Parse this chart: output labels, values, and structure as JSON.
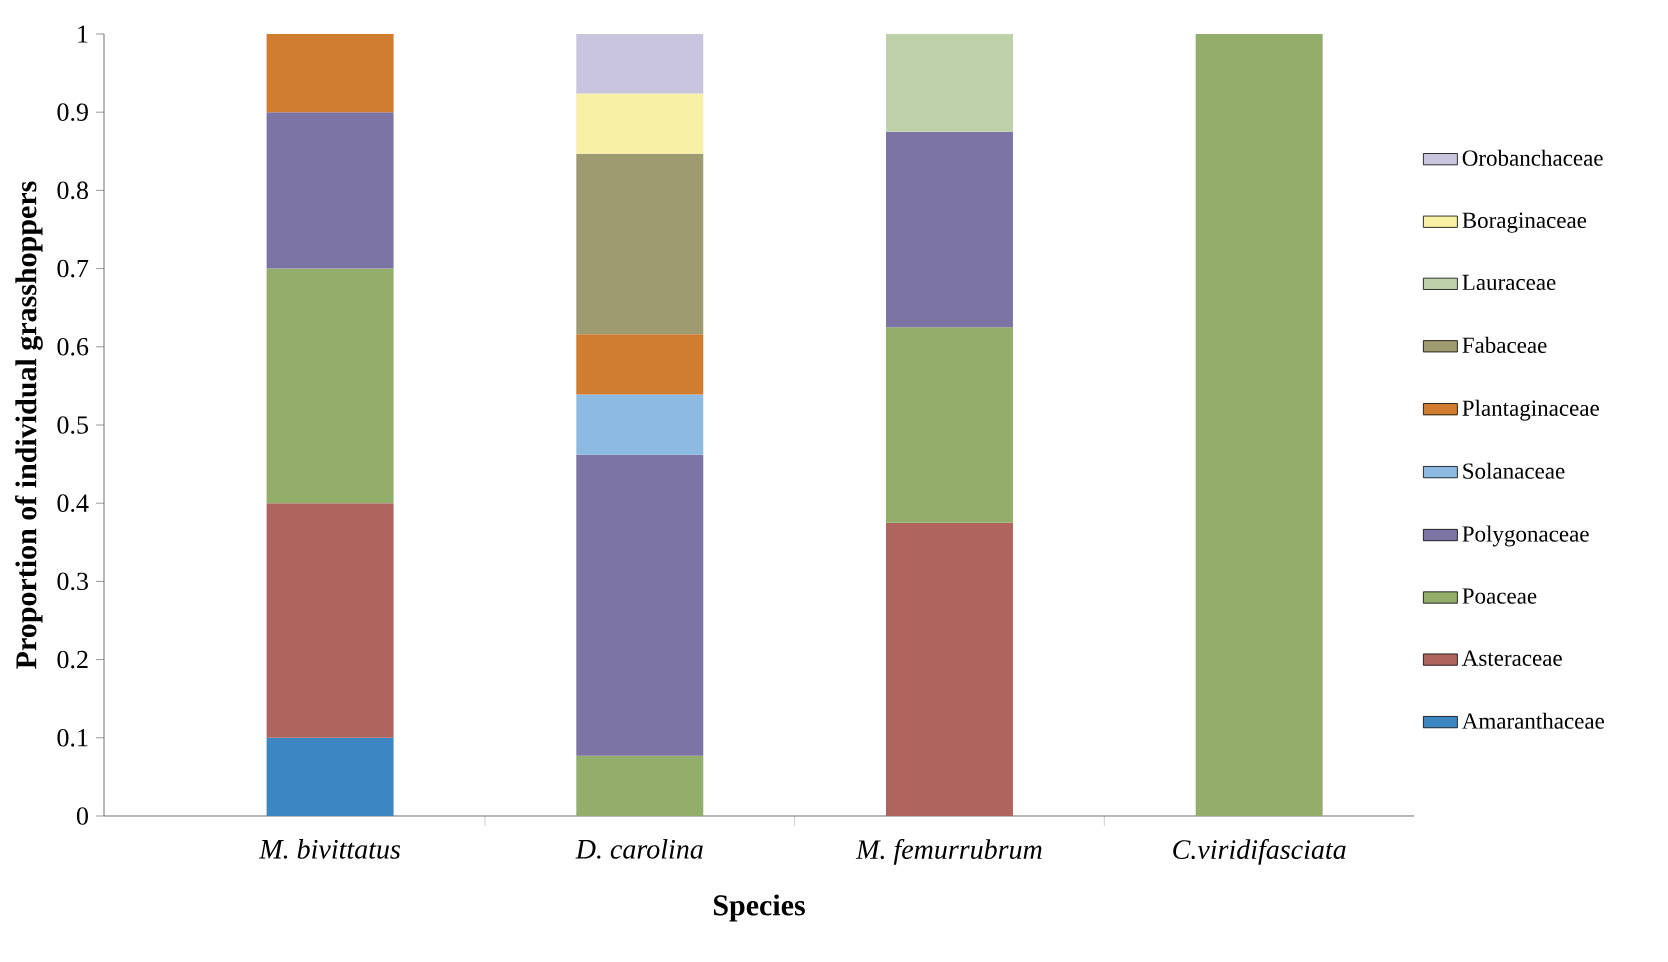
{
  "chart_data": {
    "type": "bar",
    "stacked": true,
    "xlabel": "Species",
    "ylabel": "Proportion of individual grasshoppers",
    "categories": [
      "M. bivittatus",
      "D. carolina",
      "M. femurrubrum",
      "C.viridifasciata"
    ],
    "series": [
      {
        "name": "Amaranthaceae",
        "color": "#3c87c2",
        "values": [
          0.1,
          null,
          null,
          null
        ]
      },
      {
        "name": "Asteraceae",
        "color": "#b0645e",
        "values": [
          0.3,
          null,
          0.375,
          null
        ]
      },
      {
        "name": "Poaceae",
        "color": "#93ae6b",
        "values": [
          0.3,
          0.077,
          0.25,
          1
        ]
      },
      {
        "name": "Polygonaceae",
        "color": "#7c74a4",
        "values": [
          0.2,
          0.385,
          0.25,
          null
        ]
      },
      {
        "name": "Solanaceae",
        "color": "#8dbae2",
        "values": [
          null,
          0.077,
          null,
          null
        ]
      },
      {
        "name": "Plantaginaceae",
        "color": "#d07d2f",
        "values": [
          0.1,
          0.077,
          null,
          null
        ]
      },
      {
        "name": "Fabaceae",
        "color": "#9e9b70",
        "values": [
          null,
          0.231,
          null,
          null
        ]
      },
      {
        "name": "Lauraceae",
        "color": "#bfd1ab",
        "values": [
          null,
          null,
          0.125,
          null
        ]
      },
      {
        "name": "Boraginaceae",
        "color": "#f7f0a5",
        "values": [
          null,
          0.077,
          null,
          null
        ]
      },
      {
        "name": "Orobanchaceae",
        "color": "#c9c5de",
        "values": [
          null,
          0.076,
          null,
          null
        ]
      }
    ],
    "ylim": [
      0,
      1
    ],
    "yticks": [
      0,
      0.1,
      0.2,
      0.3,
      0.4,
      0.5,
      0.6,
      0.7,
      0.8,
      0.9,
      1
    ],
    "legend": "right"
  }
}
